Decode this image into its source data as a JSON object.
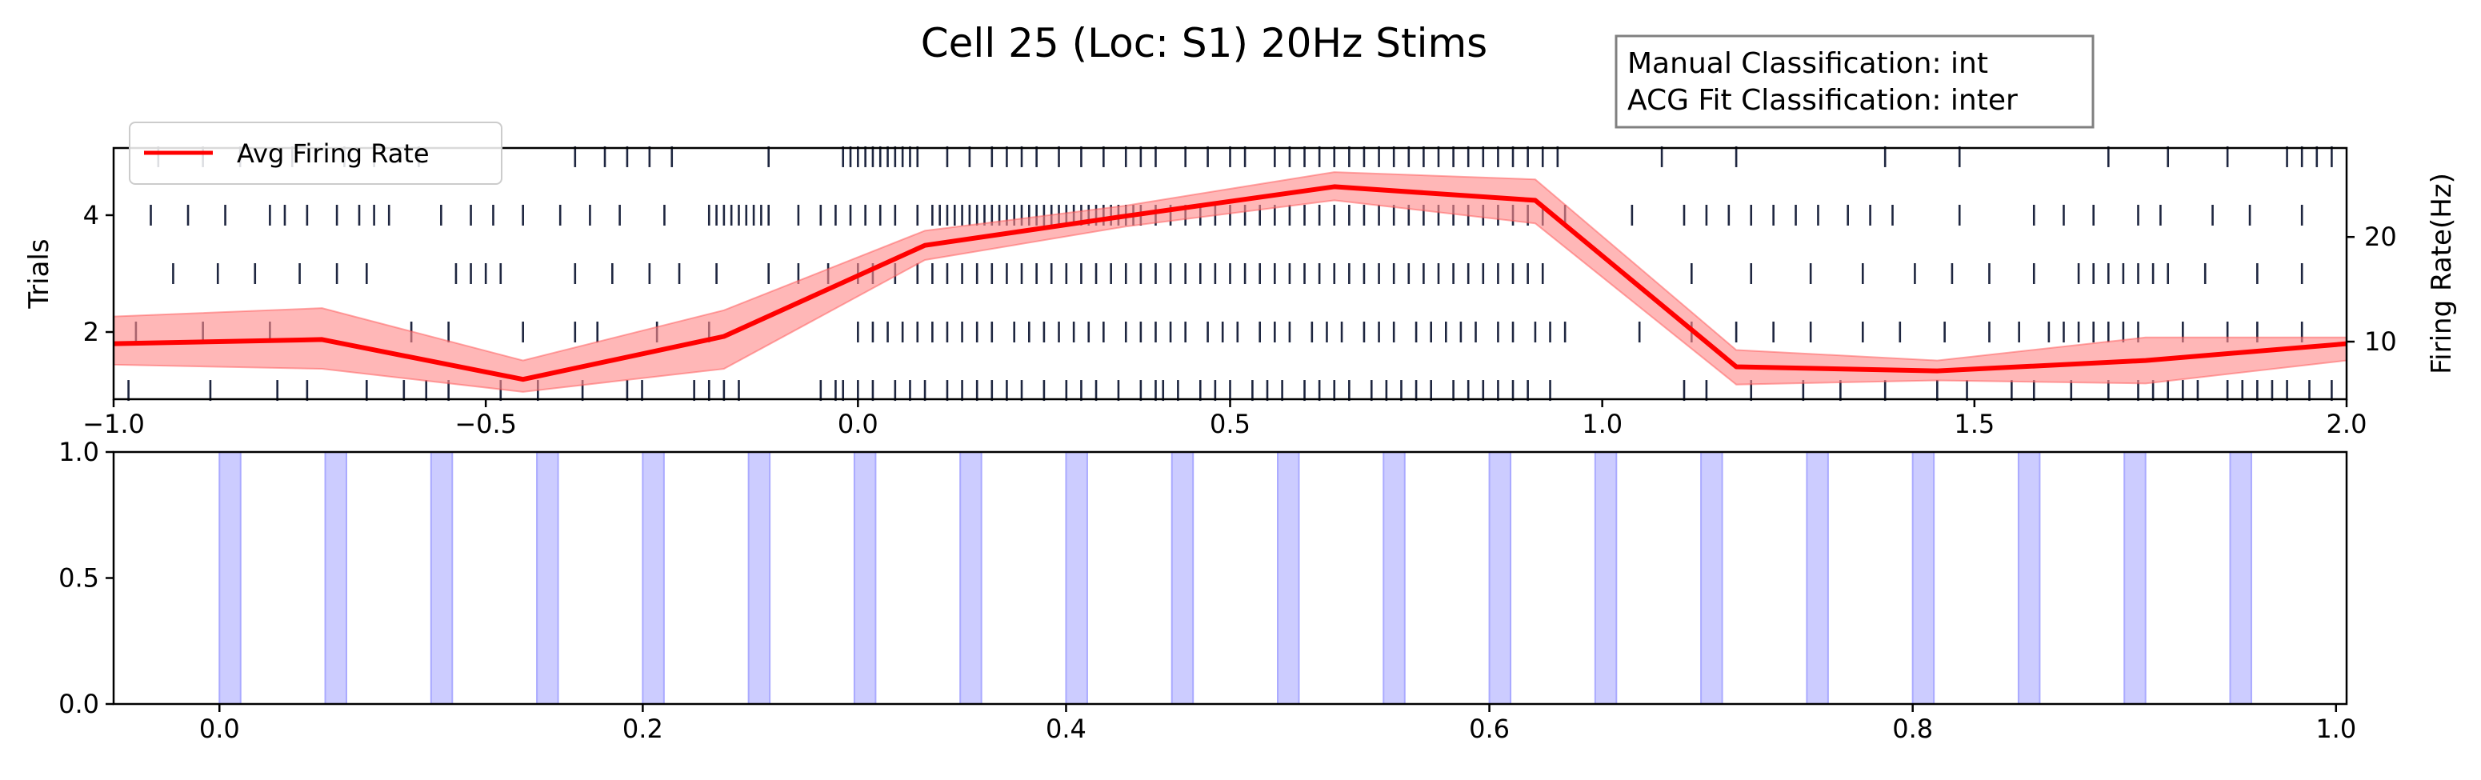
{
  "chart_data": [
    {
      "type": "line",
      "title": "Cell 25 (Loc: S1) 20Hz Stims",
      "annotation_box": {
        "lines": [
          "Manual Classification: int",
          "ACG Fit Classification: inter"
        ],
        "placement": "top-right, outside axes"
      },
      "xlim": [
        -1.0,
        2.0
      ],
      "x_ticks": [
        -1.0,
        -0.5,
        0.0,
        0.5,
        1.0,
        1.5,
        2.0
      ],
      "x_tick_labels": [
        "−1.0",
        "−0.5",
        "0.0",
        "0.5",
        "1.0",
        "1.5",
        "2.0"
      ],
      "ylabel": "Trials",
      "ylim": [
        0.85,
        5.15
      ],
      "y_ticks": [
        2,
        4
      ],
      "y2label": "Firing Rate(Hz)",
      "y2lim": [
        4.5,
        28.5
      ],
      "y2_ticks": [
        10,
        20
      ],
      "legend": {
        "placement": "upper-left",
        "entries": [
          "Avg Firing Rate"
        ]
      },
      "colors": {
        "rate_line": "#ff0000",
        "rate_band": "#ff8a8a",
        "spikes": "#1e2640"
      },
      "series": [
        {
          "name": "Avg Firing Rate",
          "x": [
            -1.0,
            -0.72,
            -0.45,
            -0.18,
            0.09,
            0.36,
            0.64,
            0.91,
            1.18,
            1.45,
            1.73,
            2.0
          ],
          "y": [
            9.8,
            10.2,
            6.4,
            10.5,
            19.2,
            22.0,
            24.8,
            23.5,
            7.6,
            7.2,
            8.2,
            9.8
          ],
          "band_upper": [
            12.4,
            13.2,
            8.2,
            13.0,
            20.6,
            23.0,
            26.2,
            25.5,
            9.2,
            8.2,
            10.4,
            10.4
          ],
          "band_lower": [
            7.8,
            7.4,
            5.2,
            7.4,
            17.8,
            21.0,
            23.5,
            21.3,
            5.9,
            6.3,
            6.0,
            8.2
          ]
        }
      ],
      "raster": {
        "trials": [
          1,
          2,
          3,
          4,
          5
        ],
        "spike_times": [
          [
            -0.98,
            -0.87,
            -0.78,
            -0.74,
            -0.66,
            -0.61,
            -0.58,
            -0.55,
            -0.48,
            -0.43,
            -0.37,
            -0.31,
            -0.29,
            -0.22,
            -0.2,
            -0.18,
            -0.16,
            -0.05,
            -0.03,
            -0.02,
            0.0,
            0.02,
            0.05,
            0.07,
            0.09,
            0.12,
            0.14,
            0.16,
            0.18,
            0.2,
            0.22,
            0.25,
            0.28,
            0.3,
            0.32,
            0.35,
            0.38,
            0.4,
            0.41,
            0.43,
            0.46,
            0.48,
            0.5,
            0.53,
            0.55,
            0.57,
            0.6,
            0.62,
            0.64,
            0.66,
            0.69,
            0.71,
            0.73,
            0.75,
            0.77,
            0.8,
            0.82,
            0.84,
            0.86,
            0.88,
            0.9,
            0.93,
            1.11,
            1.14,
            1.2,
            1.27,
            1.32,
            1.38,
            1.45,
            1.49,
            1.55,
            1.58,
            1.63,
            1.68,
            1.72,
            1.74,
            1.76,
            1.78,
            1.8,
            1.84,
            1.86,
            1.88,
            1.9,
            1.92,
            1.95,
            1.98
          ],
          [
            -0.97,
            -0.88,
            -0.79,
            -0.6,
            -0.55,
            -0.45,
            -0.38,
            -0.35,
            -0.27,
            -0.2,
            0.0,
            0.02,
            0.04,
            0.06,
            0.08,
            0.1,
            0.12,
            0.14,
            0.16,
            0.18,
            0.21,
            0.23,
            0.25,
            0.27,
            0.29,
            0.31,
            0.33,
            0.36,
            0.38,
            0.4,
            0.42,
            0.44,
            0.47,
            0.49,
            0.51,
            0.54,
            0.56,
            0.58,
            0.61,
            0.63,
            0.65,
            0.68,
            0.7,
            0.72,
            0.75,
            0.77,
            0.79,
            0.81,
            0.83,
            0.86,
            0.88,
            0.91,
            0.93,
            0.95,
            1.05,
            1.12,
            1.18,
            1.23,
            1.28,
            1.35,
            1.4,
            1.46,
            1.52,
            1.56,
            1.6,
            1.62,
            1.64,
            1.66,
            1.68,
            1.7,
            1.72,
            1.78,
            1.84,
            1.88,
            1.94
          ],
          [
            -0.92,
            -0.86,
            -0.81,
            -0.75,
            -0.7,
            -0.66,
            -0.54,
            -0.52,
            -0.5,
            -0.48,
            -0.38,
            -0.33,
            -0.28,
            -0.24,
            -0.19,
            -0.12,
            -0.08,
            -0.04,
            0.0,
            0.02,
            0.05,
            0.08,
            0.1,
            0.12,
            0.14,
            0.16,
            0.18,
            0.2,
            0.22,
            0.24,
            0.26,
            0.28,
            0.3,
            0.32,
            0.34,
            0.36,
            0.38,
            0.4,
            0.42,
            0.44,
            0.46,
            0.48,
            0.5,
            0.52,
            0.54,
            0.56,
            0.58,
            0.6,
            0.62,
            0.64,
            0.66,
            0.68,
            0.7,
            0.72,
            0.74,
            0.76,
            0.78,
            0.8,
            0.82,
            0.84,
            0.86,
            0.88,
            0.9,
            0.92,
            1.12,
            1.2,
            1.28,
            1.35,
            1.42,
            1.47,
            1.52,
            1.58,
            1.64,
            1.66,
            1.68,
            1.7,
            1.72,
            1.74,
            1.76,
            1.81,
            1.88,
            1.94
          ],
          [
            -0.95,
            -0.9,
            -0.85,
            -0.79,
            -0.77,
            -0.74,
            -0.7,
            -0.67,
            -0.65,
            -0.63,
            -0.56,
            -0.52,
            -0.49,
            -0.45,
            -0.4,
            -0.36,
            -0.32,
            -0.26,
            -0.2,
            -0.19,
            -0.18,
            -0.17,
            -0.16,
            -0.15,
            -0.14,
            -0.13,
            -0.12,
            -0.08,
            -0.05,
            -0.03,
            -0.01,
            0.01,
            0.03,
            0.05,
            0.08,
            0.1,
            0.11,
            0.12,
            0.13,
            0.14,
            0.15,
            0.16,
            0.17,
            0.18,
            0.19,
            0.2,
            0.21,
            0.22,
            0.23,
            0.24,
            0.25,
            0.26,
            0.27,
            0.28,
            0.29,
            0.3,
            0.31,
            0.32,
            0.33,
            0.34,
            0.35,
            0.36,
            0.37,
            0.38,
            0.4,
            0.42,
            0.44,
            0.46,
            0.48,
            0.5,
            0.52,
            0.54,
            0.56,
            0.58,
            0.6,
            0.62,
            0.64,
            0.66,
            0.68,
            0.7,
            0.72,
            0.74,
            0.76,
            0.78,
            0.8,
            0.82,
            0.84,
            0.86,
            0.88,
            0.9,
            0.92,
            0.95,
            1.04,
            1.11,
            1.14,
            1.17,
            1.2,
            1.23,
            1.26,
            1.29,
            1.33,
            1.36,
            1.39,
            1.48,
            1.58,
            1.62,
            1.66,
            1.72,
            1.75,
            1.82,
            1.87,
            1.94
          ],
          [
            -0.94,
            -0.88,
            -0.83,
            -0.76,
            -0.69,
            -0.65,
            -0.59,
            -0.38,
            -0.34,
            -0.31,
            -0.28,
            -0.25,
            -0.12,
            -0.02,
            -0.01,
            0.0,
            0.01,
            0.02,
            0.03,
            0.04,
            0.05,
            0.06,
            0.07,
            0.08,
            0.12,
            0.15,
            0.18,
            0.2,
            0.22,
            0.24,
            0.27,
            0.3,
            0.33,
            0.36,
            0.38,
            0.4,
            0.44,
            0.47,
            0.5,
            0.52,
            0.56,
            0.58,
            0.6,
            0.62,
            0.64,
            0.66,
            0.68,
            0.7,
            0.72,
            0.74,
            0.76,
            0.78,
            0.8,
            0.82,
            0.84,
            0.86,
            0.88,
            0.9,
            0.92,
            0.94,
            1.08,
            1.18,
            1.38,
            1.48,
            1.68,
            1.76,
            1.84,
            1.92,
            1.94,
            1.96,
            1.98
          ]
        ]
      }
    },
    {
      "type": "bar",
      "xlim": [
        -0.05,
        1.005
      ],
      "x_ticks": [
        0.0,
        0.2,
        0.4,
        0.6,
        0.8,
        1.0
      ],
      "x_tick_labels": [
        "0.0",
        "0.2",
        "0.4",
        "0.6",
        "0.8",
        "1.0"
      ],
      "ylim": [
        0,
        1
      ],
      "y_ticks": [
        0.0,
        0.5,
        1.0
      ],
      "y_tick_labels": [
        "0.0",
        "0.5",
        "1.0"
      ],
      "colors": {
        "stim_fill": "#ccccff",
        "stim_edge": "#aaaaff"
      },
      "stim_onsets": [
        0.0,
        0.05,
        0.1,
        0.15,
        0.2,
        0.25,
        0.3,
        0.35,
        0.4,
        0.45,
        0.5,
        0.55,
        0.6,
        0.65,
        0.7,
        0.75,
        0.8,
        0.85,
        0.9,
        0.95
      ],
      "stim_duration": 0.01
    }
  ]
}
